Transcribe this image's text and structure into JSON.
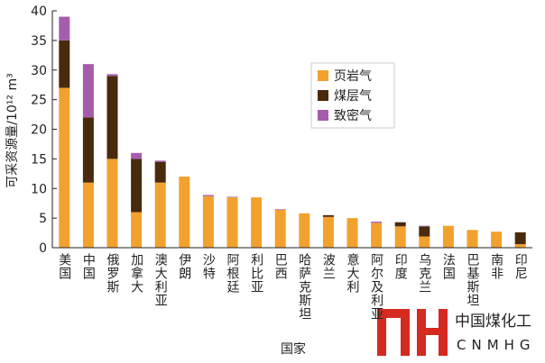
{
  "chart_data": {
    "type": "stacked-bar",
    "y_label": "可采资源量/10¹² m³",
    "x_label": "国家",
    "categories": [
      "美国",
      "中国",
      "俄罗斯",
      "加拿大",
      "澳大利亚",
      "伊朗",
      "沙特",
      "阿根廷",
      "利比亚",
      "巴西",
      "哈萨克斯坦",
      "波兰",
      "意大利",
      "阿尔及利亚",
      "印度",
      "乌克兰",
      "法国",
      "巴基斯坦",
      "南非",
      "印尼"
    ],
    "series": [
      {
        "name": "页岩气",
        "color": "#f2a12e",
        "values": [
          27,
          11,
          15,
          6,
          11,
          12,
          8.7,
          8.5,
          8.5,
          6.4,
          5.8,
          5.2,
          5,
          4.2,
          3.6,
          1.9,
          3.7,
          3,
          2.7,
          0.6
        ]
      },
      {
        "name": "煤层气",
        "color": "#4a2a0c",
        "values": [
          8,
          11,
          14,
          9,
          3.5,
          0,
          0,
          0,
          0,
          0,
          0,
          0.3,
          0,
          0,
          0.7,
          1.7,
          0,
          0,
          0,
          2
        ]
      },
      {
        "name": "致密气",
        "color": "#a55cad",
        "values": [
          4,
          9,
          0.3,
          1,
          0.2,
          0,
          0.2,
          0.1,
          0,
          0.1,
          0,
          0,
          0,
          0.2,
          0,
          0.1,
          0,
          0,
          0,
          0
        ]
      }
    ],
    "ylim": [
      0,
      40
    ],
    "yticks": [
      0,
      5,
      10,
      15,
      20,
      25,
      30,
      35,
      40
    ]
  },
  "watermark": {
    "cn": "中国煤化工",
    "en": "CNMHG"
  }
}
